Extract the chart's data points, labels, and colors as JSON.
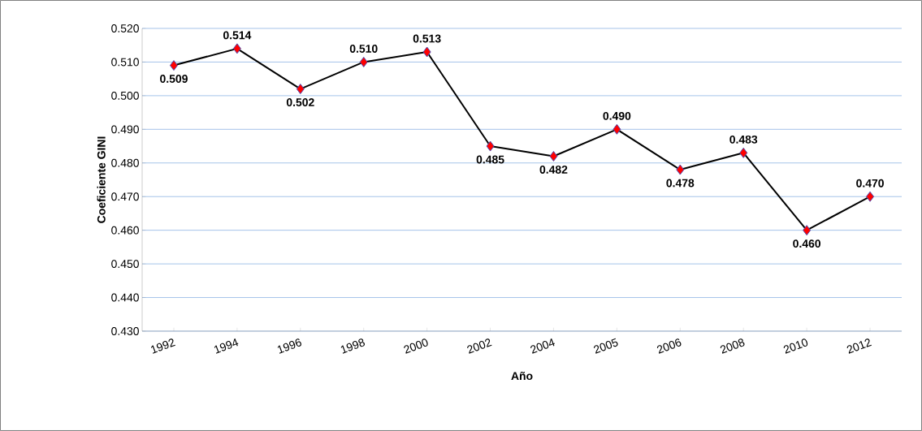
{
  "chart_data": {
    "type": "line",
    "xlabel": "Año",
    "ylabel": "Coeficiente GINI",
    "categories": [
      "1992",
      "1994",
      "1996",
      "1998",
      "2000",
      "2002",
      "2004",
      "2005",
      "2006",
      "2008",
      "2010",
      "2012"
    ],
    "series": [
      {
        "color": "#000000",
        "values": [
          0.509,
          0.514,
          0.502,
          0.51,
          0.513,
          0.485,
          0.482,
          0.49,
          0.478,
          0.483,
          0.46,
          0.47
        ]
      }
    ],
    "ylim": [
      0.43,
      0.52
    ],
    "yticks": [
      {
        "value": 0.43,
        "label": "0.430"
      },
      {
        "value": 0.44,
        "label": "0.440"
      },
      {
        "value": 0.45,
        "label": "0.450"
      },
      {
        "value": 0.46,
        "label": "0.460"
      },
      {
        "value": 0.47,
        "label": "0.470"
      },
      {
        "value": 0.48,
        "label": "0.480"
      },
      {
        "value": 0.49,
        "label": "0.490"
      },
      {
        "value": 0.5,
        "label": "0.500"
      },
      {
        "value": 0.51,
        "label": "0.510"
      },
      {
        "value": 0.52,
        "label": "0.520"
      }
    ],
    "value_labels": [
      "0.509",
      "0.514",
      "0.502",
      "0.510",
      "0.513",
      "0.485",
      "0.482",
      "0.490",
      "0.478",
      "0.483",
      "0.460",
      "0.470"
    ],
    "grid": "y",
    "marker": "diamond",
    "line_style": "solid"
  }
}
